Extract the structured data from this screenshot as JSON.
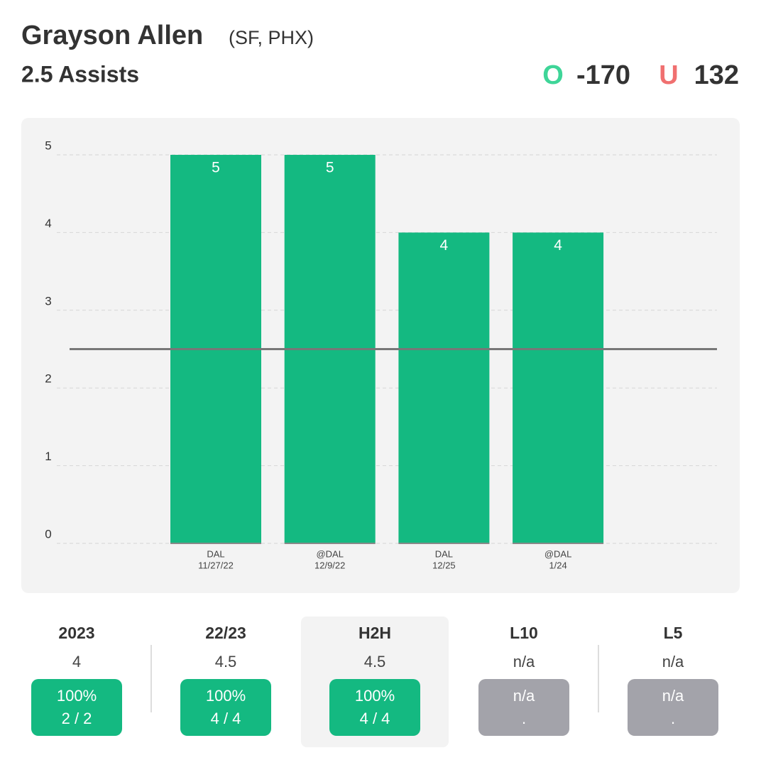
{
  "header": {
    "player": "Grayson Allen",
    "teams": "(SF, PHX)",
    "prop": "2.5 Assists",
    "over_label": "O",
    "over_odds": "-170",
    "under_label": "U",
    "under_odds": "132"
  },
  "chart_data": {
    "type": "bar",
    "categories": [
      [
        "DAL",
        "11/27/22"
      ],
      [
        "@DAL",
        "12/9/22"
      ],
      [
        "DAL",
        "12/25"
      ],
      [
        "@DAL",
        "1/24"
      ]
    ],
    "values": [
      5,
      5,
      4,
      4
    ],
    "color": "#14b981",
    "ylim": [
      0,
      5
    ],
    "yticks": [
      0,
      1,
      2,
      3,
      4,
      5
    ],
    "grid": true,
    "threshold": 2.5
  },
  "stats": [
    {
      "label": "2023",
      "value": "4",
      "pct": "100%",
      "record": "2 / 2",
      "color": "#14b981",
      "selected": false
    },
    {
      "label": "22/23",
      "value": "4.5",
      "pct": "100%",
      "record": "4 / 4",
      "color": "#14b981",
      "selected": false
    },
    {
      "label": "H2H",
      "value": "4.5",
      "pct": "100%",
      "record": "4 / 4",
      "color": "#14b981",
      "selected": true
    },
    {
      "label": "L10",
      "value": "n/a",
      "pct": "n/a",
      "record": ".",
      "color": "#a3a3aa",
      "selected": false
    },
    {
      "label": "L5",
      "value": "n/a",
      "pct": "n/a",
      "record": ".",
      "color": "#a3a3aa",
      "selected": false
    }
  ]
}
